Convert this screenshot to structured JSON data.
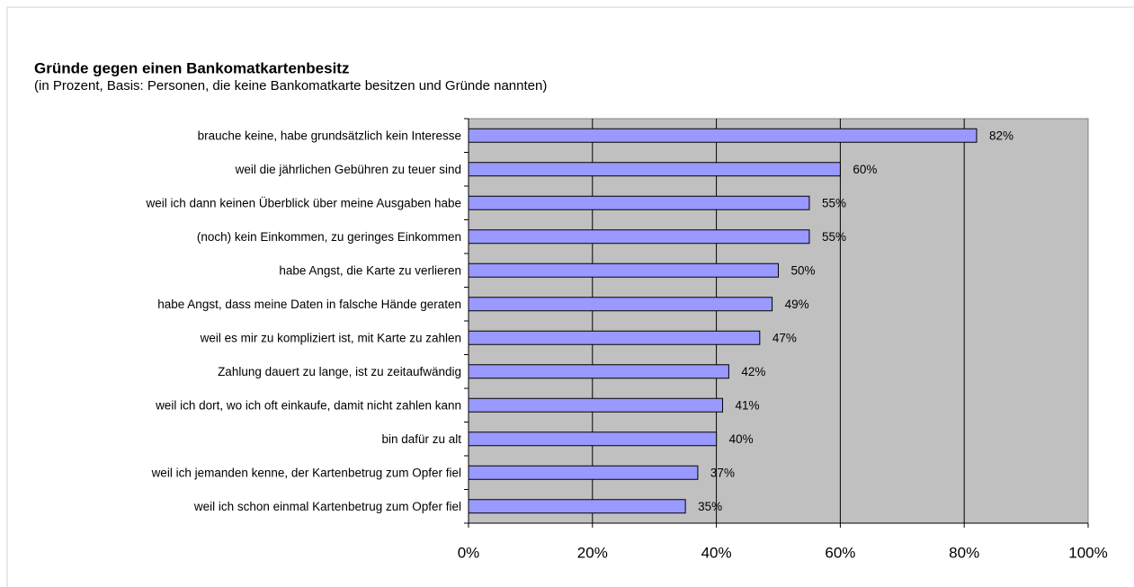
{
  "chart_data": {
    "type": "bar",
    "orientation": "horizontal",
    "title": "Gründe gegen einen Bankomatkartenbesitz",
    "subtitle": "(in Prozent, Basis: Personen, die keine Bankomatkarte  besitzen und Gründe nannten)",
    "categories": [
      "brauche keine, habe grundsätzlich kein Interesse",
      "weil die jährlichen Gebühren zu teuer sind",
      "weil ich dann keinen Überblick über meine Ausgaben habe",
      "(noch) kein Einkommen, zu geringes Einkommen",
      "habe Angst, die Karte zu verlieren",
      "habe Angst, dass meine Daten in falsche Hände geraten",
      "weil es mir zu kompliziert ist, mit Karte zu zahlen",
      "Zahlung dauert zu lange, ist zu zeitaufwändig",
      "weil ich dort, wo ich oft einkaufe, damit nicht zahlen kann",
      "bin dafür zu alt",
      "weil ich jemanden kenne, der Kartenbetrug zum Opfer fiel",
      "weil ich schon einmal Kartenbetrug zum Opfer fiel"
    ],
    "values": [
      82,
      60,
      55,
      55,
      50,
      49,
      47,
      42,
      41,
      40,
      37,
      35
    ],
    "value_labels": [
      "82%",
      "60%",
      "55%",
      "55%",
      "50%",
      "49%",
      "47%",
      "42%",
      "41%",
      "40%",
      "37%",
      "35%"
    ],
    "color": "#9999ff",
    "plot_background": "#c0c0c0",
    "grid": true,
    "xlim": [
      0,
      100
    ],
    "xticks": [
      {
        "value": 0,
        "label": "0%"
      },
      {
        "value": 20,
        "label": "20%"
      },
      {
        "value": 40,
        "label": "40%"
      },
      {
        "value": 60,
        "label": "60%"
      },
      {
        "value": 80,
        "label": "80%"
      },
      {
        "value": 100,
        "label": "100%"
      }
    ]
  }
}
